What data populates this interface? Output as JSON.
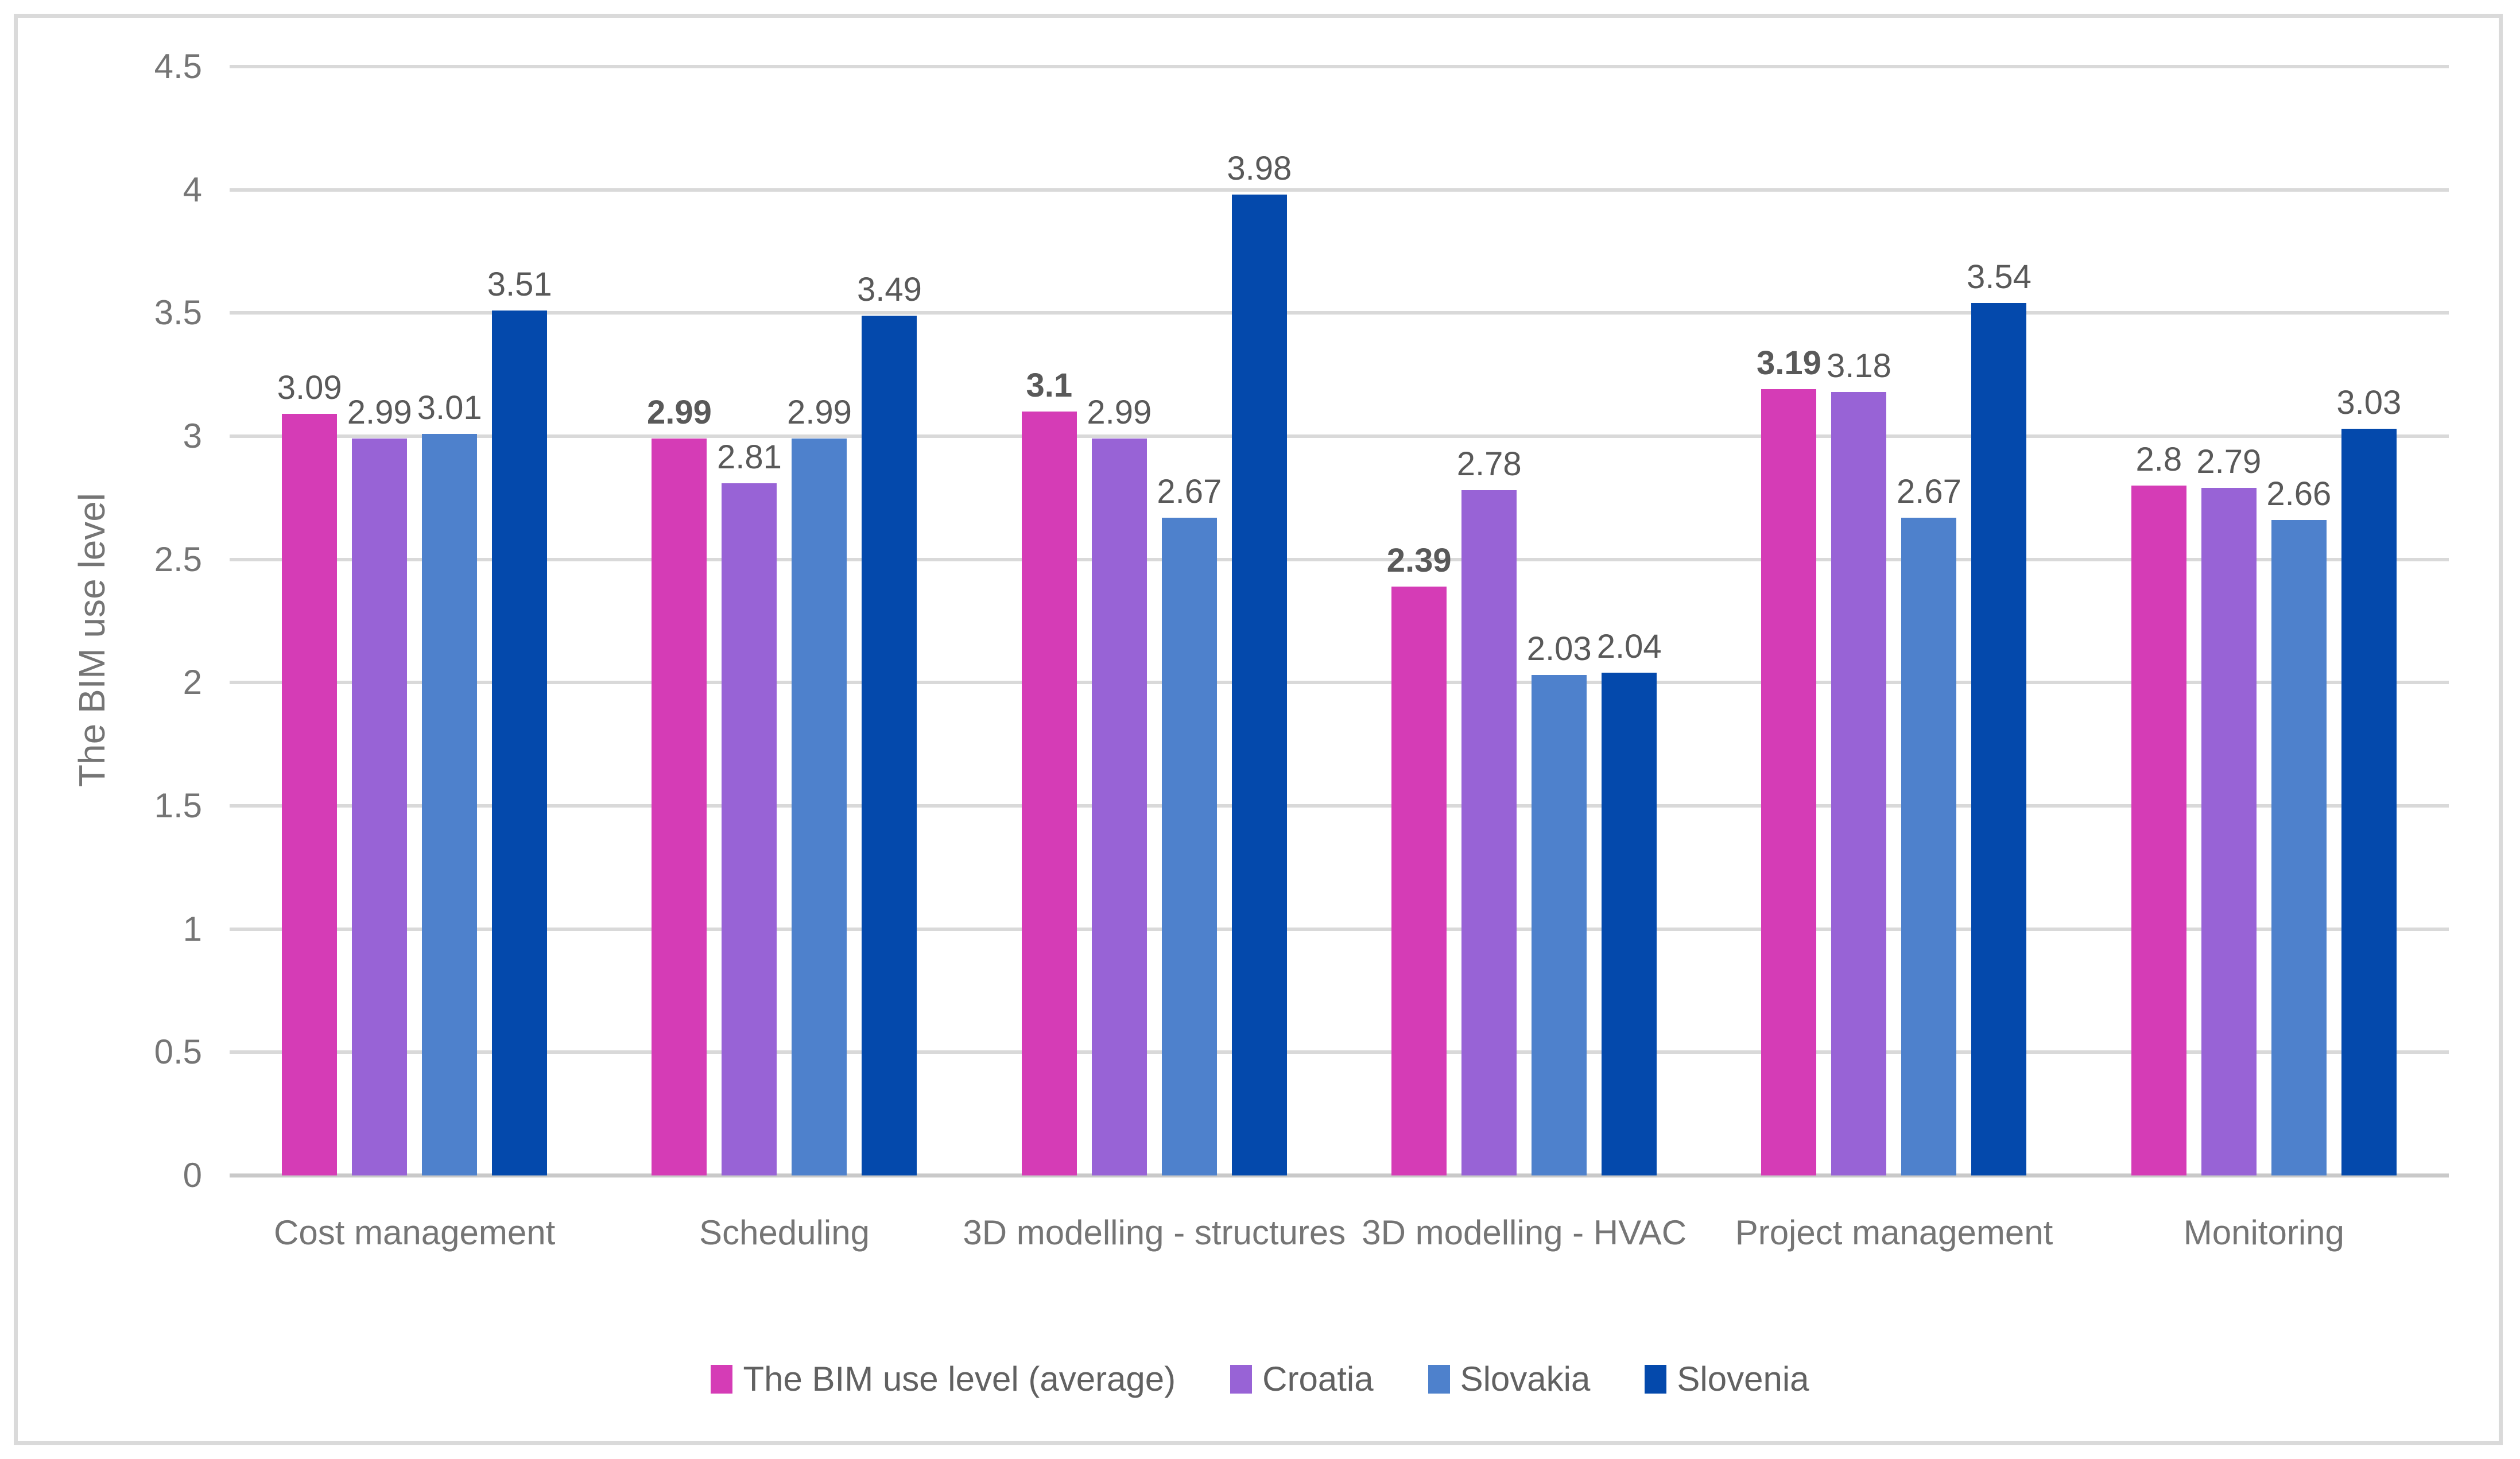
{
  "figure": {
    "background": "#FFFFFF",
    "border_color": "#DADADA"
  },
  "chart_data": {
    "type": "bar",
    "title": "",
    "xlabel": "",
    "ylabel": "The BIM use level",
    "ylim": [
      0,
      4.5
    ],
    "ytick_interval": 0.5,
    "yticks": [
      "4.5",
      "4",
      "3.5",
      "3",
      "2.5",
      "2",
      "1.5",
      "1",
      "0.5",
      "0"
    ],
    "grid": true,
    "gridline_color": "#D9D9D9",
    "axis_line_color": "#C9C9C9",
    "legend_position": "bottom",
    "value_label_color": "#595959",
    "tick_label_color": "#757575",
    "categories": [
      "Cost management",
      "Scheduling",
      "3D modelling - structures",
      "3D modelling - HVAC",
      "Project management",
      "Monitoring"
    ],
    "series": [
      {
        "name": "The BIM use level (average)",
        "color": "#D53CB6",
        "values": [
          3.09,
          2.99,
          3.1,
          2.39,
          3.19,
          2.8
        ],
        "labels": [
          "3.09",
          "2.99",
          "3.1",
          "2.39",
          "3.19",
          "2.8"
        ],
        "labels_bold": [
          false,
          true,
          true,
          true,
          true,
          false
        ]
      },
      {
        "name": "Croatia",
        "color": "#9863D6",
        "values": [
          2.99,
          2.81,
          2.99,
          2.78,
          3.18,
          2.79
        ],
        "labels": [
          "2.99",
          "2.81",
          "2.99",
          "2.78",
          "3.18",
          "2.79"
        ],
        "labels_bold": [
          false,
          false,
          false,
          false,
          false,
          false
        ]
      },
      {
        "name": "Slovakia",
        "color": "#4E81CC",
        "values": [
          3.01,
          2.99,
          2.67,
          2.03,
          2.67,
          2.66
        ],
        "labels": [
          "3.01",
          "2.99",
          "2.67",
          "2.03",
          "2.67",
          "2.66"
        ],
        "labels_bold": [
          false,
          false,
          false,
          false,
          false,
          false
        ]
      },
      {
        "name": "Slovenia",
        "color": "#0449AC",
        "values": [
          3.51,
          3.49,
          3.98,
          2.04,
          3.54,
          3.03
        ],
        "labels": [
          "3.51",
          "3.49",
          "3.98",
          "2.04",
          "3.54",
          "3.03"
        ],
        "labels_bold": [
          false,
          false,
          false,
          false,
          false,
          false
        ]
      }
    ]
  }
}
